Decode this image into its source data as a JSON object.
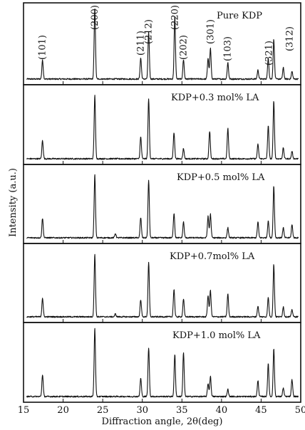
{
  "chart_data": {
    "type": "line",
    "figure": "stacked XRD patterns",
    "xlabel": "Diffraction angle, 2θ(deg)",
    "ylabel": "Intensity (a.u.)",
    "xlim": [
      15,
      50
    ],
    "xticks": [
      15,
      20,
      25,
      30,
      35,
      40,
      45,
      50
    ],
    "series": [
      {
        "name": "Pure KDP",
        "peaks": [
          {
            "x": 17.4,
            "y": 0.25
          },
          {
            "x": 24.0,
            "y": 0.95
          },
          {
            "x": 29.8,
            "y": 0.28
          },
          {
            "x": 30.8,
            "y": 0.62
          },
          {
            "x": 34.1,
            "y": 0.84
          },
          {
            "x": 35.2,
            "y": 0.26
          },
          {
            "x": 38.3,
            "y": 0.28
          },
          {
            "x": 38.6,
            "y": 0.41
          },
          {
            "x": 40.8,
            "y": 0.22
          },
          {
            "x": 44.6,
            "y": 0.12
          },
          {
            "x": 45.9,
            "y": 0.28
          },
          {
            "x": 46.6,
            "y": 0.53
          },
          {
            "x": 47.8,
            "y": 0.15
          },
          {
            "x": 48.9,
            "y": 0.1
          }
        ],
        "miller_indices": [
          {
            "x": 17.4,
            "label": "(101)"
          },
          {
            "x": 24.0,
            "label": "(200)"
          },
          {
            "x": 29.8,
            "label": "(211)"
          },
          {
            "x": 30.8,
            "label": "(212)"
          },
          {
            "x": 34.1,
            "label": "(220)"
          },
          {
            "x": 35.2,
            "label": "(202)"
          },
          {
            "x": 38.6,
            "label": "(301)"
          },
          {
            "x": 40.8,
            "label": "(103)"
          },
          {
            "x": 46.0,
            "label": "(321)"
          },
          {
            "x": 48.6,
            "label": "(312)"
          }
        ]
      },
      {
        "name": "KDP+0.3 mol% LA",
        "peaks": [
          {
            "x": 17.4,
            "y": 0.25
          },
          {
            "x": 24.0,
            "y": 0.88
          },
          {
            "x": 29.8,
            "y": 0.3
          },
          {
            "x": 30.8,
            "y": 0.82
          },
          {
            "x": 34.0,
            "y": 0.36
          },
          {
            "x": 35.2,
            "y": 0.14
          },
          {
            "x": 38.5,
            "y": 0.38
          },
          {
            "x": 40.8,
            "y": 0.42
          },
          {
            "x": 44.6,
            "y": 0.2
          },
          {
            "x": 45.9,
            "y": 0.46
          },
          {
            "x": 46.6,
            "y": 0.8
          },
          {
            "x": 47.8,
            "y": 0.15
          },
          {
            "x": 48.9,
            "y": 0.1
          }
        ]
      },
      {
        "name": "KDP+0.5 mol% LA",
        "peaks": [
          {
            "x": 17.4,
            "y": 0.27
          },
          {
            "x": 24.0,
            "y": 0.88
          },
          {
            "x": 26.6,
            "y": 0.06
          },
          {
            "x": 29.8,
            "y": 0.28
          },
          {
            "x": 30.8,
            "y": 0.8
          },
          {
            "x": 34.0,
            "y": 0.34
          },
          {
            "x": 35.2,
            "y": 0.22
          },
          {
            "x": 38.3,
            "y": 0.3
          },
          {
            "x": 38.6,
            "y": 0.33
          },
          {
            "x": 40.8,
            "y": 0.14
          },
          {
            "x": 44.6,
            "y": 0.22
          },
          {
            "x": 45.9,
            "y": 0.24
          },
          {
            "x": 46.6,
            "y": 0.72
          },
          {
            "x": 47.8,
            "y": 0.14
          },
          {
            "x": 48.9,
            "y": 0.18
          }
        ]
      },
      {
        "name": "KDP+0.7mol% LA",
        "peaks": [
          {
            "x": 17.4,
            "y": 0.26
          },
          {
            "x": 24.0,
            "y": 0.88
          },
          {
            "x": 26.6,
            "y": 0.04
          },
          {
            "x": 29.8,
            "y": 0.24
          },
          {
            "x": 30.8,
            "y": 0.75
          },
          {
            "x": 34.0,
            "y": 0.38
          },
          {
            "x": 35.2,
            "y": 0.25
          },
          {
            "x": 38.3,
            "y": 0.3
          },
          {
            "x": 38.6,
            "y": 0.37
          },
          {
            "x": 40.8,
            "y": 0.32
          },
          {
            "x": 44.6,
            "y": 0.15
          },
          {
            "x": 45.9,
            "y": 0.27
          },
          {
            "x": 46.6,
            "y": 0.73
          },
          {
            "x": 47.8,
            "y": 0.14
          },
          {
            "x": 48.9,
            "y": 0.1
          }
        ]
      },
      {
        "name": "KDP+1.0 mol% LA",
        "peaks": [
          {
            "x": 17.4,
            "y": 0.3
          },
          {
            "x": 24.0,
            "y": 0.95
          },
          {
            "x": 29.8,
            "y": 0.25
          },
          {
            "x": 30.8,
            "y": 0.67
          },
          {
            "x": 34.1,
            "y": 0.58
          },
          {
            "x": 35.2,
            "y": 0.6
          },
          {
            "x": 38.3,
            "y": 0.18
          },
          {
            "x": 38.6,
            "y": 0.28
          },
          {
            "x": 40.8,
            "y": 0.1
          },
          {
            "x": 44.6,
            "y": 0.22
          },
          {
            "x": 45.9,
            "y": 0.45
          },
          {
            "x": 46.6,
            "y": 0.66
          },
          {
            "x": 47.8,
            "y": 0.12
          },
          {
            "x": 48.9,
            "y": 0.23
          }
        ]
      }
    ],
    "grid": false,
    "legend": "none"
  }
}
